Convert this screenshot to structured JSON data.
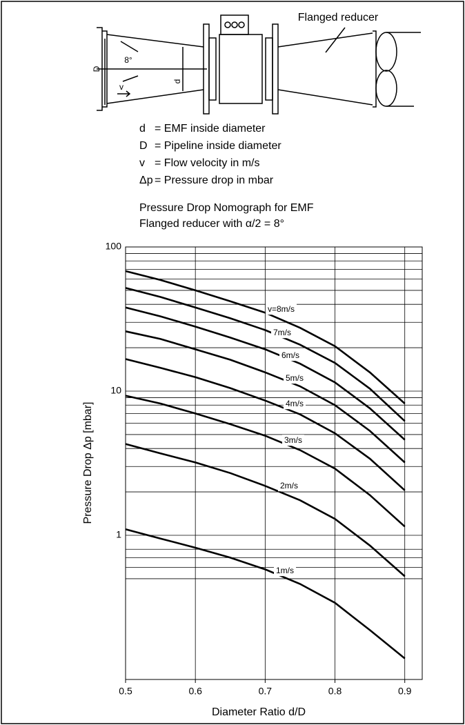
{
  "diagram": {
    "reducer_label": "Flanged reducer",
    "angle": "8°",
    "D": "D",
    "d": "d",
    "v": "v"
  },
  "legend": [
    {
      "symbol": "d",
      "text": "= EMF inside diameter"
    },
    {
      "symbol": "D",
      "text": "= Pipeline inside diameter"
    },
    {
      "symbol": "v",
      "text": "= Flow velocity in m/s"
    },
    {
      "symbol": "Δp",
      "text": "= Pressure drop in mbar"
    }
  ],
  "chart_data": {
    "type": "line",
    "title": "Pressure Drop Nomograph for EMF",
    "subtitle": "Flanged reducer with α/2 = 8°",
    "x_label": "Diameter Ratio d/D",
    "y_label": "Pressure Drop Δp [mbar]",
    "log_y": true,
    "grid": true,
    "xlim": [
      0.5,
      0.925
    ],
    "xticks": [
      0.5,
      0.6,
      0.7,
      0.8,
      0.9
    ],
    "ylim": [
      0.1,
      100
    ],
    "yticks": [
      1,
      10,
      100
    ],
    "yminorticks": [
      0.5,
      0.6,
      0.7,
      0.8,
      2,
      3,
      4,
      5,
      6,
      7,
      8,
      9,
      20,
      30,
      40,
      50,
      60,
      70,
      80,
      90
    ],
    "x": [
      0.5,
      0.55,
      0.6,
      0.65,
      0.7,
      0.75,
      0.8,
      0.85,
      0.9
    ],
    "series": [
      {
        "name": "v=8m/s",
        "color": "#000000",
        "values": [
          68,
          59,
          50,
          42,
          35,
          27.5,
          20.5,
          13.5,
          8.2
        ]
      },
      {
        "name": "7m/s",
        "color": "#000000",
        "values": [
          52,
          45,
          38,
          32,
          26.5,
          21,
          15.7,
          10.4,
          6.2
        ]
      },
      {
        "name": "6m/s",
        "color": "#000000",
        "values": [
          38,
          33,
          28,
          23.5,
          19.5,
          15.5,
          11.5,
          7.6,
          4.6
        ]
      },
      {
        "name": "5m/s",
        "color": "#000000",
        "values": [
          26,
          23,
          19.5,
          16.5,
          13.5,
          10.8,
          8,
          5.3,
          3.2
        ]
      },
      {
        "name": "4m/s",
        "color": "#000000",
        "values": [
          16.7,
          14.5,
          12.5,
          10.5,
          8.6,
          6.9,
          5.1,
          3.4,
          2.05
        ]
      },
      {
        "name": "3m/s",
        "color": "#000000",
        "values": [
          9.3,
          8.2,
          7.0,
          5.9,
          4.9,
          3.9,
          2.9,
          1.9,
          1.15
        ]
      },
      {
        "name": "2m/s",
        "color": "#000000",
        "values": [
          4.3,
          3.7,
          3.2,
          2.7,
          2.2,
          1.75,
          1.3,
          0.85,
          0.52
        ]
      },
      {
        "name": "1m/s",
        "color": "#000000",
        "values": [
          1.1,
          0.95,
          0.82,
          0.7,
          0.58,
          0.46,
          0.34,
          0.22,
          0.14
        ]
      }
    ]
  }
}
